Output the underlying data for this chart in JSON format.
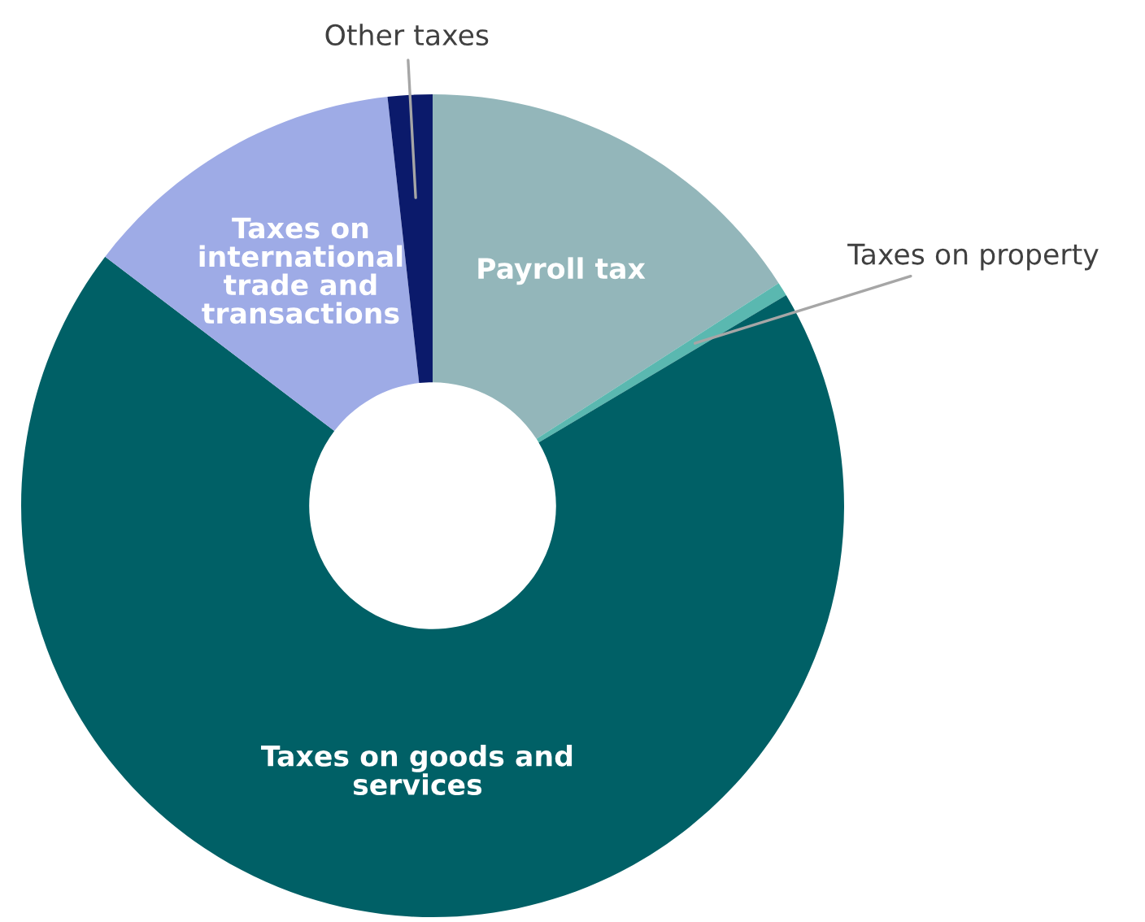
{
  "chart_data": {
    "type": "donut",
    "categories": [
      "Payroll tax",
      "Taxes on property",
      "Taxes on goods and\nservices",
      "Taxes on\ninternational\ntrade and\ntransactions",
      "Other taxes"
    ],
    "values": [
      15.9,
      0.55,
      68.9,
      12.9,
      1.75
    ],
    "colors": [
      "#93b6ba",
      "#5ab8b0",
      "#006066",
      "#9eabe6",
      "#0b1a6b"
    ]
  }
}
